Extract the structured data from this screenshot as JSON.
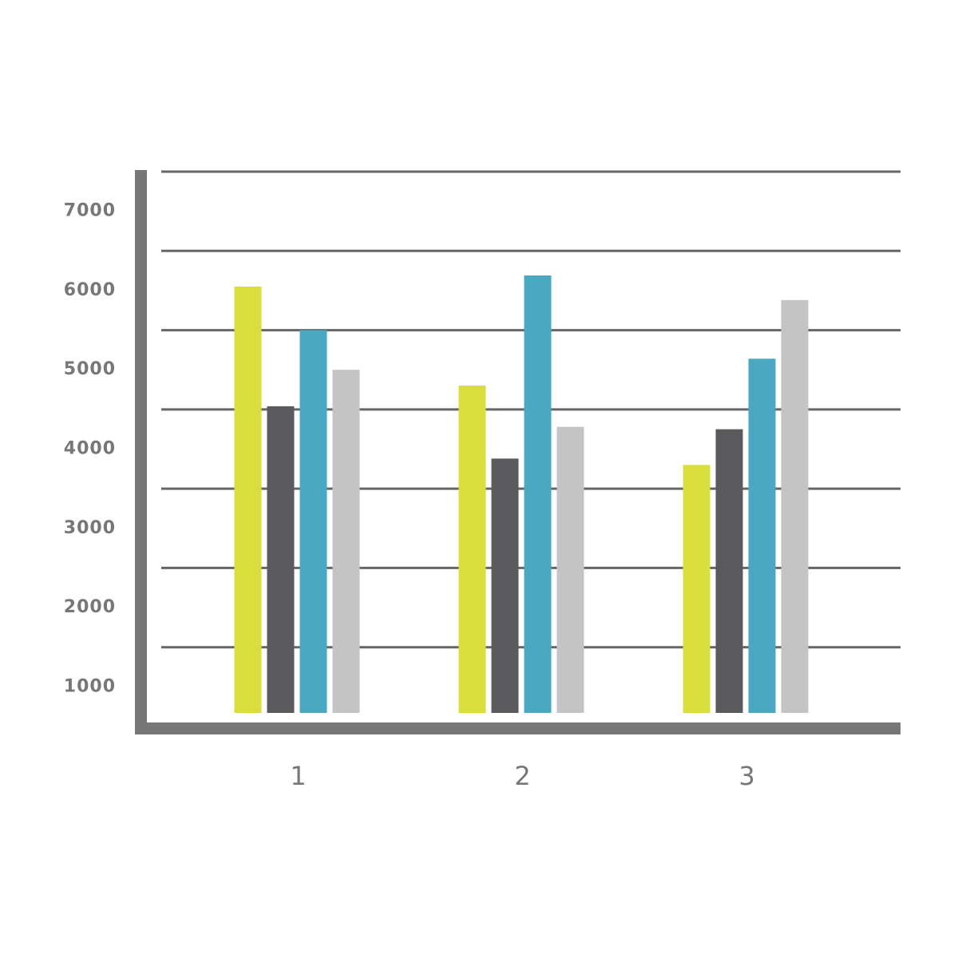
{
  "chart_data": {
    "type": "bar",
    "categories": [
      "1",
      "2",
      "3"
    ],
    "series": [
      {
        "color": "#d8df3d",
        "values": [
          6050,
          4800,
          3800
        ]
      },
      {
        "color": "#5a5a5c",
        "values": [
          4540,
          3880,
          4250
        ]
      },
      {
        "color": "#4aa9c0",
        "values": [
          5500,
          6190,
          5140
        ]
      },
      {
        "color": "#c4c4c4",
        "values": [
          5000,
          4280,
          5880
        ]
      }
    ],
    "ylim": [
      500,
      7500
    ],
    "yticks": [
      1000,
      2000,
      3000,
      4000,
      5000,
      6000,
      7000
    ],
    "grid": true
  }
}
